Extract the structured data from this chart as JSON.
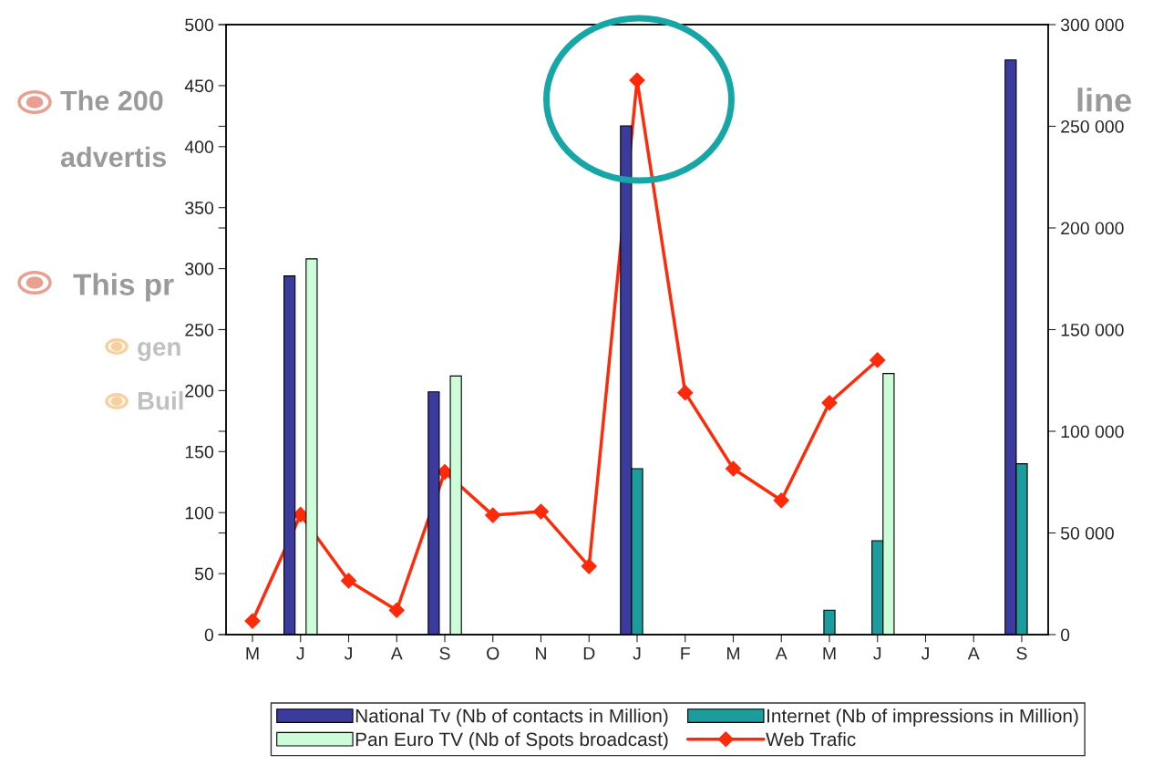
{
  "chart_data": {
    "type": "bar",
    "categories": [
      "M",
      "J",
      "J",
      "A",
      "S",
      "O",
      "N",
      "D",
      "J",
      "F",
      "M",
      "A",
      "M",
      "J",
      "J",
      "A",
      "S"
    ],
    "series": [
      {
        "name": "National Tv (Nb of contacts in Million)",
        "color": "#3b3b9e",
        "values": [
          null,
          294,
          null,
          null,
          199,
          null,
          null,
          null,
          417,
          null,
          null,
          null,
          null,
          null,
          null,
          null,
          471
        ]
      },
      {
        "name": "Internet (Nb of impressions in Million)",
        "color": "#1c9c9c",
        "values": [
          null,
          null,
          null,
          null,
          null,
          null,
          null,
          null,
          136,
          null,
          null,
          null,
          20,
          77,
          null,
          null,
          140
        ]
      },
      {
        "name": "Pan Euro TV (Nb of Spots broadcast)",
        "color": "#ccfcd8",
        "values": [
          null,
          308,
          null,
          null,
          212,
          null,
          null,
          null,
          null,
          null,
          null,
          null,
          null,
          214,
          null,
          null,
          null
        ]
      },
      {
        "name": "Web Trafic",
        "type": "line",
        "axis": "y2",
        "color": "#ff2a0a",
        "marker": "diamond",
        "values": [
          6700,
          59000,
          26500,
          12000,
          80000,
          58700,
          60500,
          33600,
          272600,
          119000,
          81600,
          66000,
          114000,
          135000,
          null,
          null,
          null
        ]
      }
    ],
    "ylim": [
      0,
      500
    ],
    "yticks": [
      0,
      50,
      100,
      150,
      200,
      250,
      300,
      350,
      400,
      450,
      500
    ],
    "y2lim": [
      0,
      300000
    ],
    "y2ticks": [
      {
        "value": 0,
        "label": "0"
      },
      {
        "value": 50000,
        "label": "50 000"
      },
      {
        "value": 100000,
        "label": "100 000"
      },
      {
        "value": 150000,
        "label": "150 000"
      },
      {
        "value": 200000,
        "label": "200 000"
      },
      {
        "value": 250000,
        "label": "250 000"
      },
      {
        "value": 300000,
        "label": "300 000"
      }
    ],
    "grid": false,
    "legend": "bottom",
    "annotations": [
      "The 200",
      "line",
      "advertis",
      "This pr",
      "gen",
      "Buil"
    ]
  }
}
